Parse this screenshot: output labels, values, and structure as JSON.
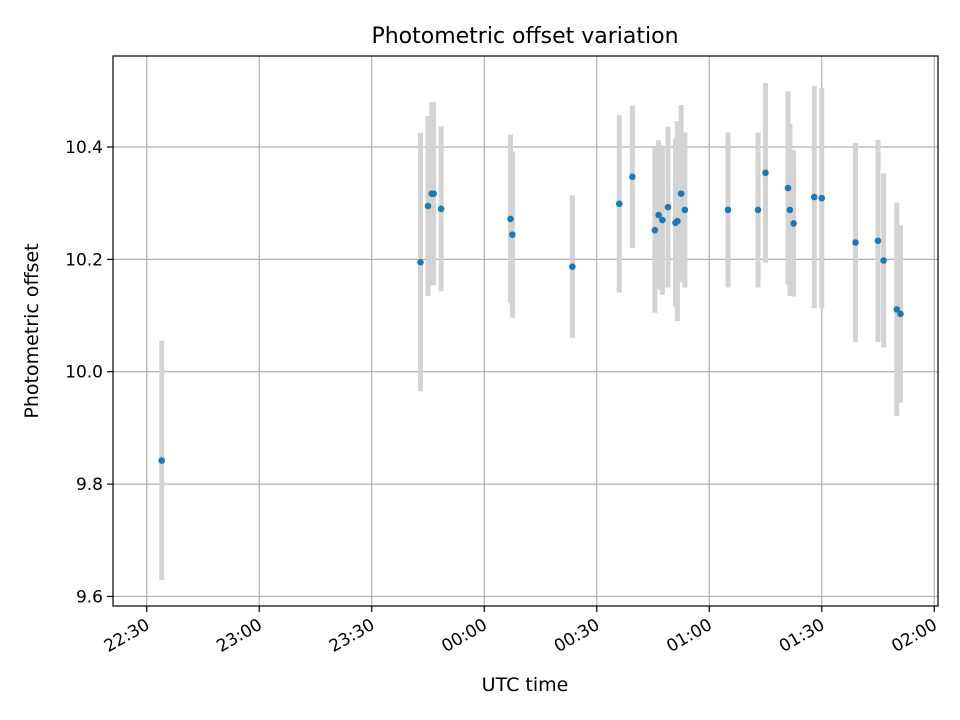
{
  "chart_data": {
    "type": "scatter",
    "title": "Photometric offset variation",
    "xlabel": "UTC time",
    "ylabel": "Photometric offset",
    "x_axis": {
      "type": "time",
      "range": [
        "2023-01-01T22:21:00",
        "2023-01-02T02:01:00"
      ],
      "ticks": [
        {
          "t": "2023-01-01T22:30:00",
          "label": "22:30"
        },
        {
          "t": "2023-01-01T23:00:00",
          "label": "23:00"
        },
        {
          "t": "2023-01-01T23:30:00",
          "label": "23:30"
        },
        {
          "t": "2023-01-02T00:00:00",
          "label": "00:00"
        },
        {
          "t": "2023-01-02T00:30:00",
          "label": "00:30"
        },
        {
          "t": "2023-01-02T01:00:00",
          "label": "01:00"
        },
        {
          "t": "2023-01-02T01:30:00",
          "label": "01:30"
        },
        {
          "t": "2023-01-02T02:00:00",
          "label": "02:00"
        }
      ],
      "tick_label_rotation": 30
    },
    "y_axis": {
      "range": [
        9.583,
        10.562
      ],
      "ticks": [
        9.6,
        9.8,
        10.0,
        10.2,
        10.4
      ],
      "tick_labels": [
        "9.6",
        "9.8",
        "10.0",
        "10.2",
        "10.4"
      ]
    },
    "grid": true,
    "marker_color": "#1f77b4",
    "errorbar_color": "#d3d3d3",
    "points": [
      {
        "t": "2023-01-01T22:34:00",
        "y": 9.842,
        "err": 0.213
      },
      {
        "t": "2023-01-01T23:43:00",
        "y": 10.195,
        "err": 0.23
      },
      {
        "t": "2023-01-01T23:45:00",
        "y": 10.295,
        "err": 0.16
      },
      {
        "t": "2023-01-01T23:46:00",
        "y": 10.317,
        "err": 0.163
      },
      {
        "t": "2023-01-01T23:46:30",
        "y": 10.317,
        "err": 0.163
      },
      {
        "t": "2023-01-01T23:48:30",
        "y": 10.29,
        "err": 0.147
      },
      {
        "t": "2023-01-02T00:07:00",
        "y": 10.272,
        "err": 0.15
      },
      {
        "t": "2023-01-02T00:07:30",
        "y": 10.244,
        "err": 0.148
      },
      {
        "t": "2023-01-02T00:23:30",
        "y": 10.187,
        "err": 0.127
      },
      {
        "t": "2023-01-02T00:36:00",
        "y": 10.299,
        "err": 0.158
      },
      {
        "t": "2023-01-02T00:39:30",
        "y": 10.347,
        "err": 0.127
      },
      {
        "t": "2023-01-02T00:45:30",
        "y": 10.252,
        "err": 0.147
      },
      {
        "t": "2023-01-02T00:46:30",
        "y": 10.279,
        "err": 0.133
      },
      {
        "t": "2023-01-02T00:47:30",
        "y": 10.27,
        "err": 0.133
      },
      {
        "t": "2023-01-02T00:49:00",
        "y": 10.293,
        "err": 0.143
      },
      {
        "t": "2023-01-02T00:51:00",
        "y": 10.265,
        "err": 0.15
      },
      {
        "t": "2023-01-02T00:51:30",
        "y": 10.268,
        "err": 0.178
      },
      {
        "t": "2023-01-02T00:52:30",
        "y": 10.317,
        "err": 0.158
      },
      {
        "t": "2023-01-02T00:53:30",
        "y": 10.288,
        "err": 0.138
      },
      {
        "t": "2023-01-02T01:05:00",
        "y": 10.288,
        "err": 0.138
      },
      {
        "t": "2023-01-02T01:13:00",
        "y": 10.288,
        "err": 0.138
      },
      {
        "t": "2023-01-02T01:15:00",
        "y": 10.354,
        "err": 0.16
      },
      {
        "t": "2023-01-02T01:21:00",
        "y": 10.327,
        "err": 0.172
      },
      {
        "t": "2023-01-02T01:21:30",
        "y": 10.288,
        "err": 0.153
      },
      {
        "t": "2023-01-02T01:22:30",
        "y": 10.264,
        "err": 0.13
      },
      {
        "t": "2023-01-02T01:28:00",
        "y": 10.311,
        "err": 0.198
      },
      {
        "t": "2023-01-02T01:30:00",
        "y": 10.309,
        "err": 0.196
      },
      {
        "t": "2023-01-02T01:39:00",
        "y": 10.23,
        "err": 0.177
      },
      {
        "t": "2023-01-02T01:45:00",
        "y": 10.233,
        "err": 0.18
      },
      {
        "t": "2023-01-02T01:46:30",
        "y": 10.198,
        "err": 0.155
      },
      {
        "t": "2023-01-02T01:50:00",
        "y": 10.111,
        "err": 0.19
      },
      {
        "t": "2023-01-02T01:51:00",
        "y": 10.103,
        "err": 0.158
      }
    ]
  }
}
